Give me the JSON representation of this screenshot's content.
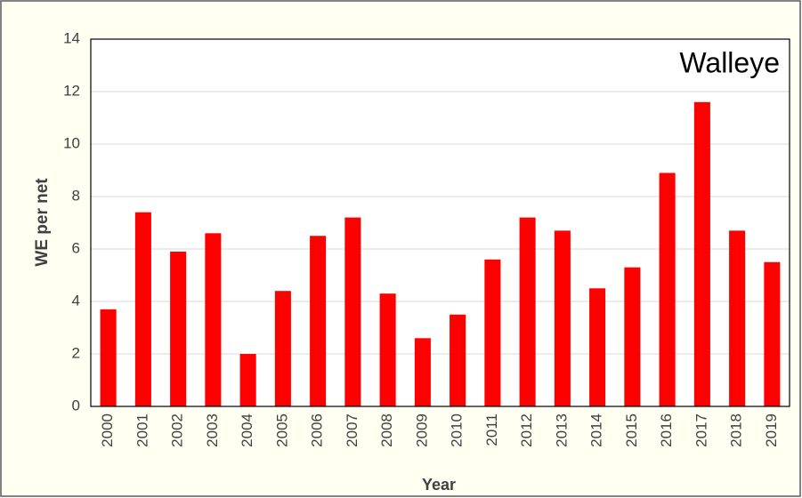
{
  "chart_data": {
    "type": "bar",
    "annotation": "Walleye",
    "xlabel": "Year",
    "ylabel": "WE per net",
    "categories": [
      "2000",
      "2001",
      "2002",
      "2003",
      "2004",
      "2005",
      "2006",
      "2007",
      "2008",
      "2009",
      "2010",
      "2011",
      "2012",
      "2013",
      "2014",
      "2015",
      "2016",
      "2017",
      "2018",
      "2019"
    ],
    "values": [
      3.7,
      7.4,
      5.9,
      6.6,
      2.0,
      4.4,
      6.5,
      7.2,
      4.3,
      2.6,
      3.5,
      5.6,
      7.2,
      6.7,
      4.5,
      5.3,
      8.9,
      11.6,
      6.7,
      5.5
    ],
    "color": "#ff0000",
    "ylim": [
      0,
      14
    ],
    "yticks": [
      0,
      2,
      4,
      6,
      8,
      10,
      12,
      14
    ],
    "grid": true
  }
}
